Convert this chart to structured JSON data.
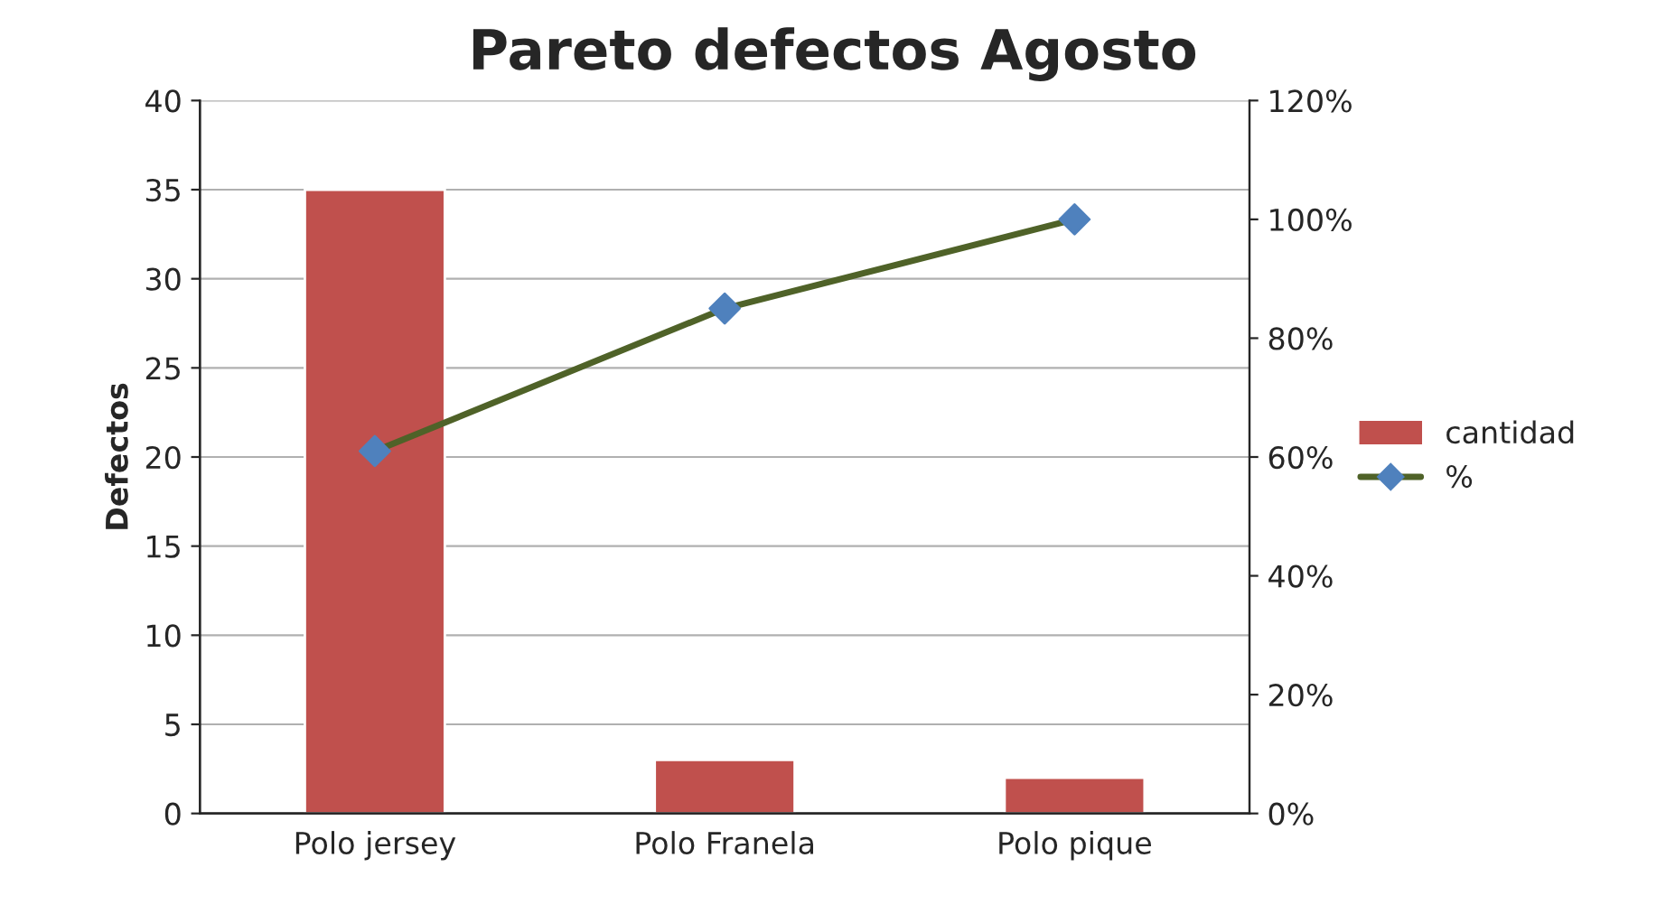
{
  "chart_data": {
    "type": "bar",
    "title": "Pareto defectos Agosto",
    "ylabel": "Defectos",
    "categories": [
      "Polo jersey",
      "Polo Franela",
      "Polo pique"
    ],
    "series": [
      {
        "name": "cantidad",
        "color": "#c0504d",
        "values": [
          35,
          3,
          2
        ]
      },
      {
        "name": "%",
        "type": "line",
        "axis": "y2",
        "color": "#4f6228",
        "colors": [
          "#4f81bd",
          "#4f81bd",
          "#4f81bd"
        ],
        "marker": "diamond",
        "values": [
          61,
          85,
          100
        ]
      }
    ],
    "ylim": [
      0,
      40
    ],
    "yticks": [
      0,
      5,
      10,
      15,
      20,
      25,
      30,
      35,
      40
    ],
    "y2lim": [
      0,
      120
    ],
    "y2ticks": [
      {
        "value": 0,
        "label": "0%"
      },
      {
        "value": 20,
        "label": "20%"
      },
      {
        "value": 40,
        "label": "40%"
      },
      {
        "value": 60,
        "label": "60%"
      },
      {
        "value": 80,
        "label": "80%"
      },
      {
        "value": 100,
        "label": "100%"
      },
      {
        "value": 120,
        "label": "120%"
      }
    ],
    "grid": "y",
    "legend": "right"
  }
}
